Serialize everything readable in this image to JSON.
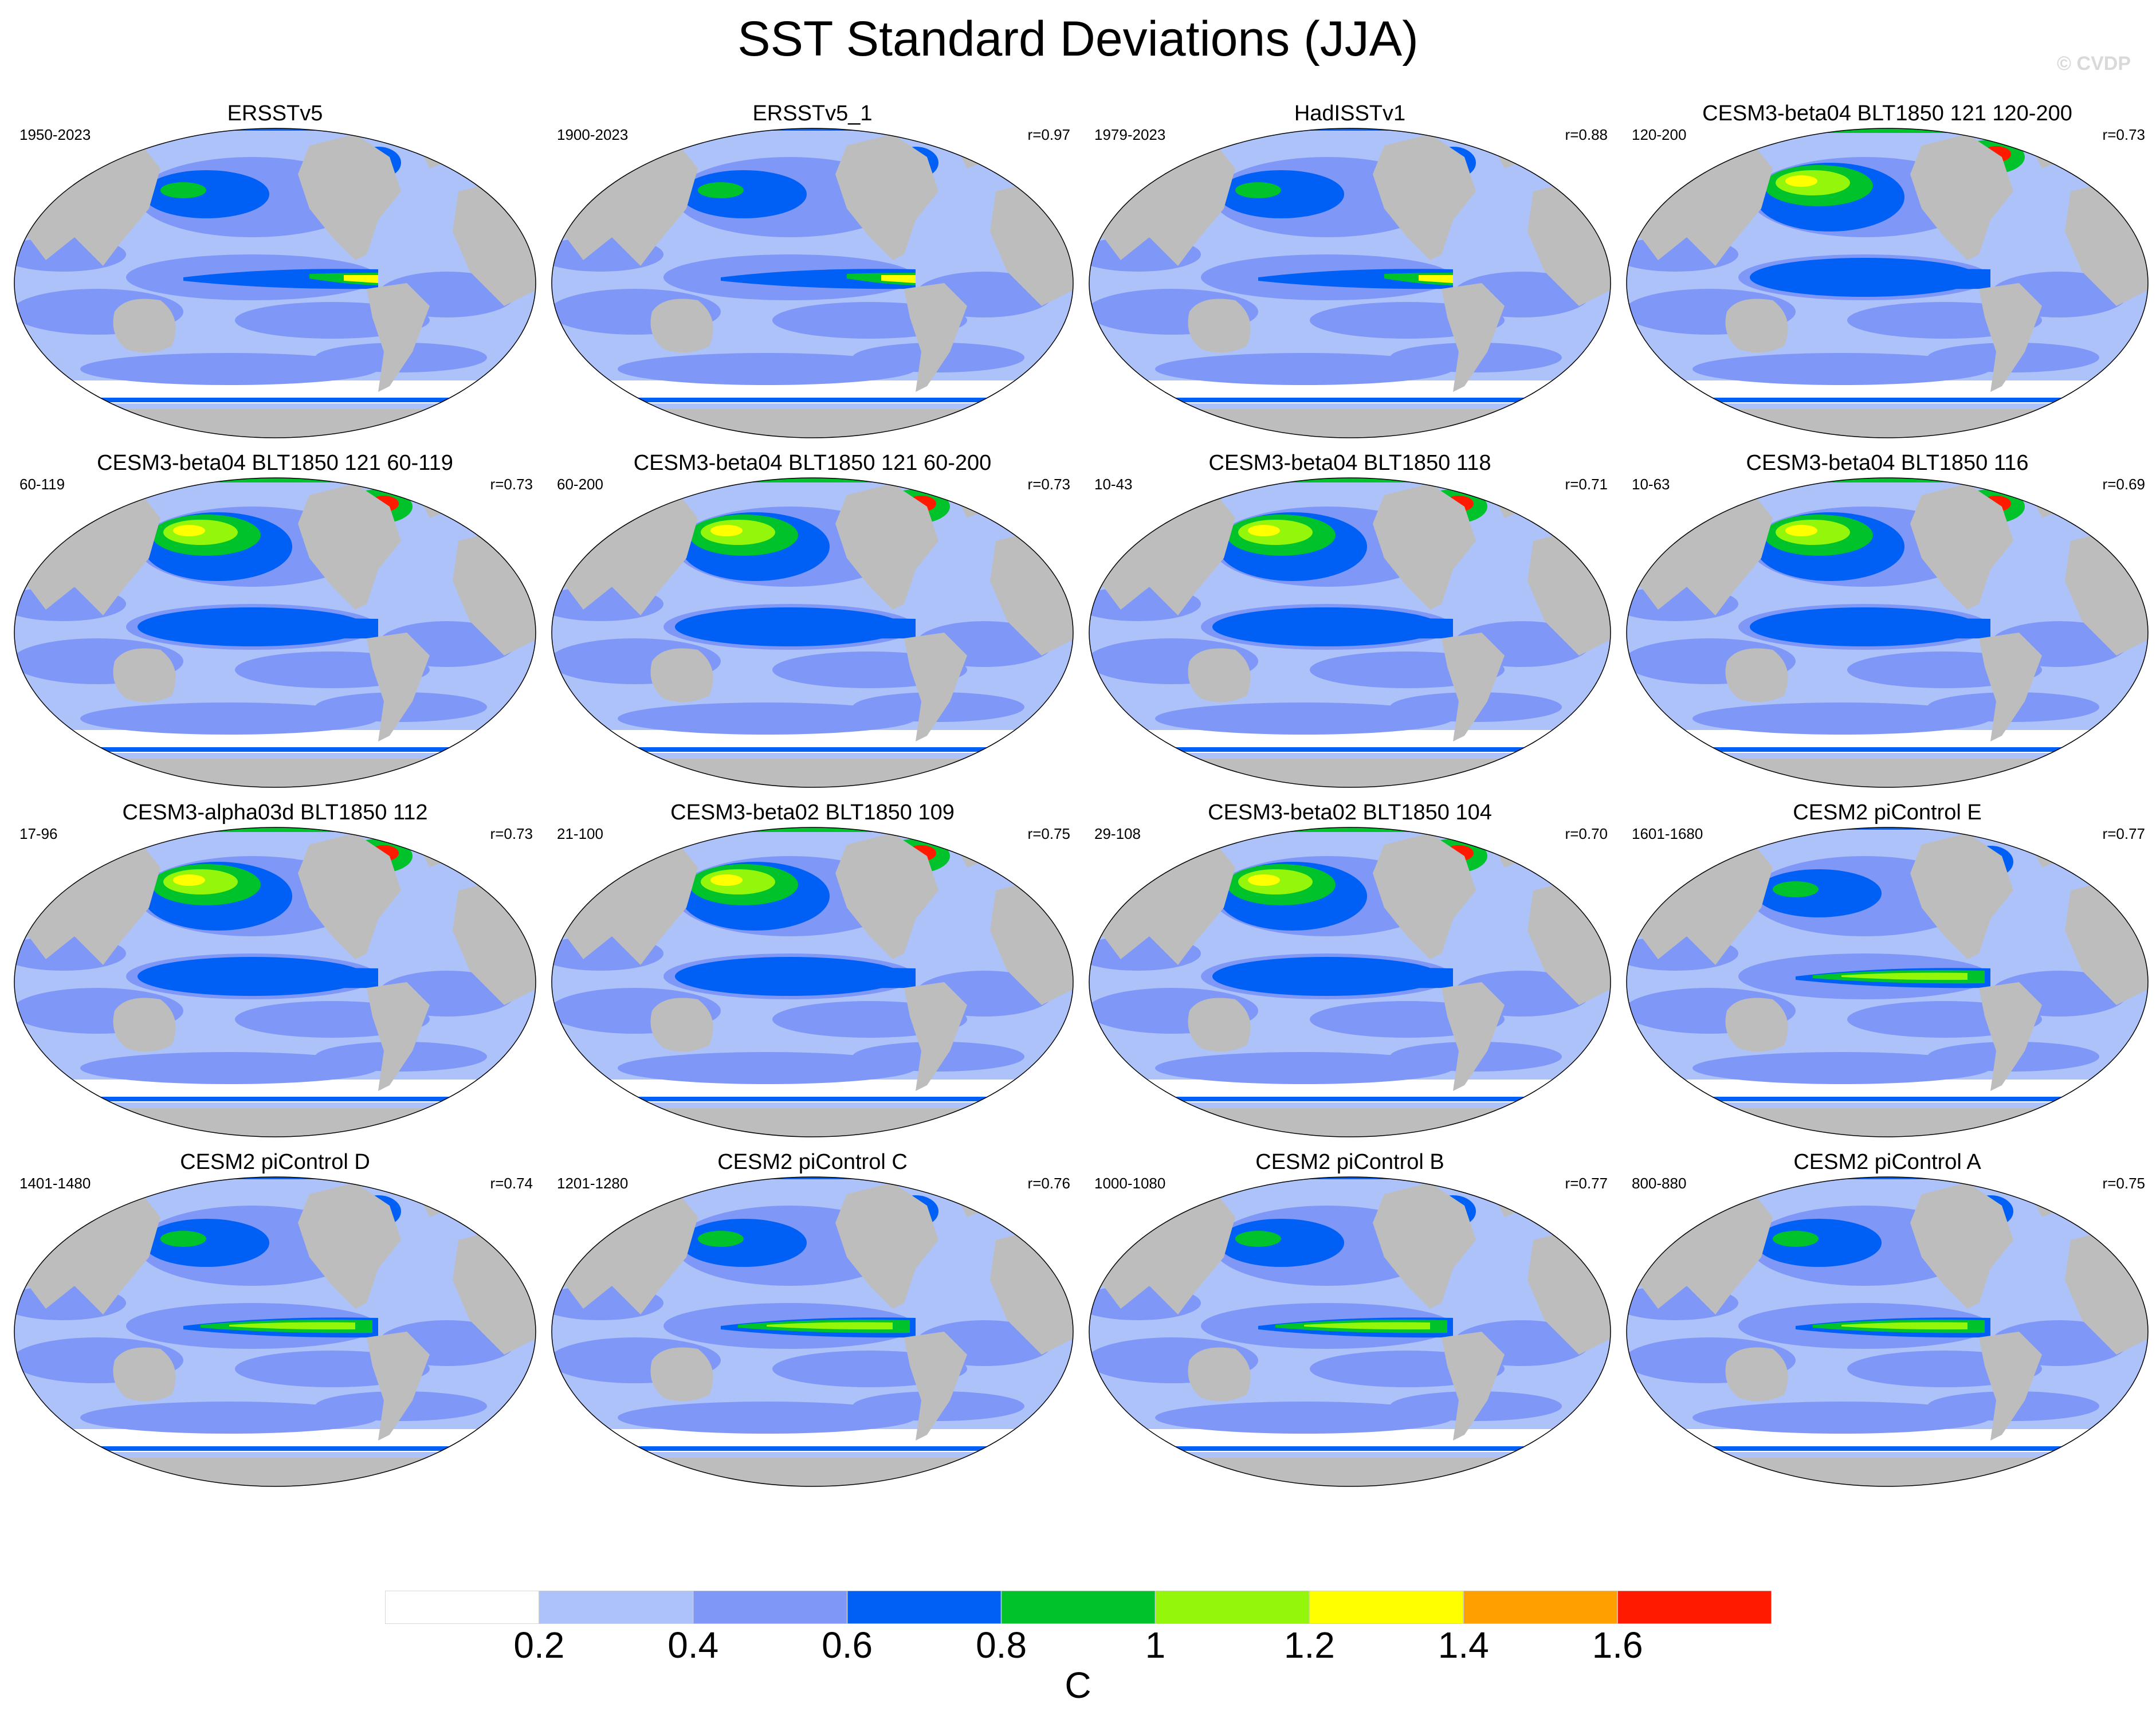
{
  "title": "SST Standard Deviations (JJA)",
  "watermark": "© CVDP",
  "colors": {
    "land": "#bdbdbd",
    "ocean_background": "#ffffff",
    "coast": "#ffffff",
    "levels": [
      "#ffffff",
      "#aec2fa",
      "#7f97f7",
      "#0060f5",
      "#00c22a",
      "#94f60a",
      "#ffff00",
      "#ffa000",
      "#ff1a00"
    ]
  },
  "colorbar": {
    "unit": "C",
    "tick_labels": [
      "0.2",
      "0.4",
      "0.6",
      "0.8",
      "1",
      "1.2",
      "1.4",
      "1.6"
    ]
  },
  "panels": [
    {
      "title": "ERSSTv5",
      "period": "1950-2023",
      "r": ""
    },
    {
      "title": "ERSSTv5_1",
      "period": "1900-2023",
      "r": "r=0.97"
    },
    {
      "title": "HadISSTv1",
      "period": "1979-2023",
      "r": "r=0.88"
    },
    {
      "title": "CESM3-beta04 BLT1850 121 120-200",
      "period": "120-200",
      "r": "r=0.73"
    },
    {
      "title": "CESM3-beta04 BLT1850 121 60-119",
      "period": "60-119",
      "r": "r=0.73"
    },
    {
      "title": "CESM3-beta04 BLT1850 121 60-200",
      "period": "60-200",
      "r": "r=0.73"
    },
    {
      "title": "CESM3-beta04 BLT1850 118",
      "period": "10-43",
      "r": "r=0.71"
    },
    {
      "title": "CESM3-beta04 BLT1850 116",
      "period": "10-63",
      "r": "r=0.69"
    },
    {
      "title": "CESM3-alpha03d BLT1850 112",
      "period": "17-96",
      "r": "r=0.73"
    },
    {
      "title": "CESM3-beta02 BLT1850 109",
      "period": "21-100",
      "r": "r=0.75"
    },
    {
      "title": "CESM3-beta02 BLT1850 104",
      "period": "29-108",
      "r": "r=0.70"
    },
    {
      "title": "CESM2 piControl E",
      "period": "1601-1680",
      "r": "r=0.77"
    },
    {
      "title": "CESM2 piControl D",
      "period": "1401-1480",
      "r": "r=0.74"
    },
    {
      "title": "CESM2 piControl C",
      "period": "1201-1280",
      "r": "r=0.76"
    },
    {
      "title": "CESM2 piControl B",
      "period": "1000-1080",
      "r": "r=0.77"
    },
    {
      "title": "CESM2 piControl A",
      "period": "800-880",
      "r": "r=0.75"
    }
  ]
}
